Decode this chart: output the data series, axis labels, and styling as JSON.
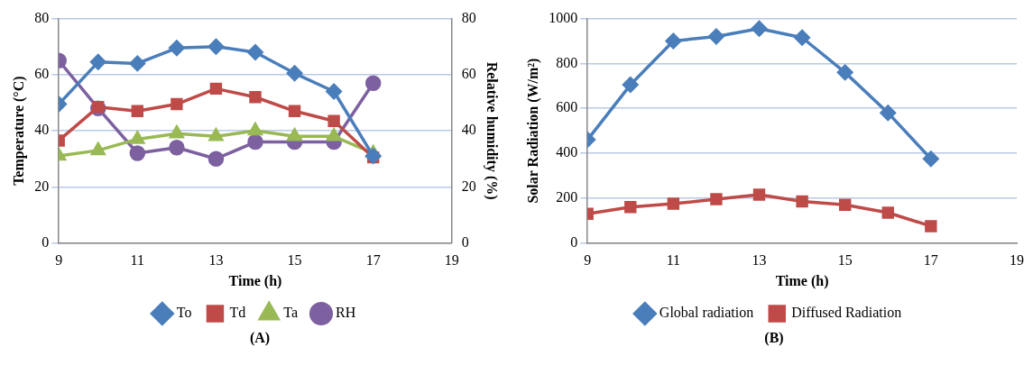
{
  "chart_data": [
    {
      "type": "line",
      "x": [
        9,
        10,
        11,
        12,
        13,
        14,
        15,
        16,
        17
      ],
      "xlabel": "Time (h)",
      "ylabel": "Temperature (°C)",
      "y2label": "Relative humidity (%)",
      "xlim": [
        9,
        19
      ],
      "xticks": [
        9,
        11,
        13,
        15,
        17,
        19
      ],
      "ylim": [
        0,
        80
      ],
      "yticks": [
        0,
        20,
        40,
        60,
        80
      ],
      "y2lim": [
        0,
        80
      ],
      "y2ticks": [
        0,
        20,
        40,
        60,
        80
      ],
      "grid": "y",
      "legend": "bottom",
      "annotations": [
        "(A)"
      ],
      "series": [
        {
          "name": "To",
          "color": "#4a7ebb",
          "marker": "diamond",
          "values": [
            49.5,
            64.5,
            64,
            69.5,
            70,
            68,
            60.5,
            54,
            31
          ]
        },
        {
          "name": "Td",
          "color": "#be4b48",
          "marker": "square",
          "values": [
            36.5,
            48.5,
            47,
            49.5,
            55,
            52,
            47,
            43.5,
            30.5
          ]
        },
        {
          "name": "Ta",
          "color": "#98b954",
          "marker": "triangle",
          "values": [
            31,
            33,
            37,
            39,
            38,
            40,
            38,
            38,
            32
          ]
        },
        {
          "name": "RH",
          "color": "#7d60a0",
          "marker": "circle",
          "axis": "y2",
          "values": [
            65,
            48,
            32,
            34,
            30,
            36,
            36,
            36,
            57
          ]
        }
      ]
    },
    {
      "type": "line",
      "x": [
        9,
        10,
        11,
        12,
        13,
        14,
        15,
        16,
        17
      ],
      "xlabel": "Time (h)",
      "ylabel": "Solar Radiation (W/m²)",
      "xlim": [
        9,
        19
      ],
      "xticks": [
        9,
        11,
        13,
        15,
        17,
        19
      ],
      "ylim": [
        0,
        1000
      ],
      "yticks": [
        0,
        200,
        400,
        600,
        800,
        1000
      ],
      "grid": "y",
      "legend": "bottom",
      "annotations": [
        "(B)"
      ],
      "series": [
        {
          "name": "Global radiation",
          "color": "#4a7ebb",
          "marker": "diamond",
          "values": [
            460,
            705,
            900,
            920,
            955,
            915,
            760,
            580,
            375
          ]
        },
        {
          "name": "Diffused Radiation",
          "color": "#be4b48",
          "marker": "square",
          "values": [
            130,
            160,
            175,
            195,
            215,
            185,
            170,
            135,
            75
          ]
        }
      ]
    }
  ]
}
